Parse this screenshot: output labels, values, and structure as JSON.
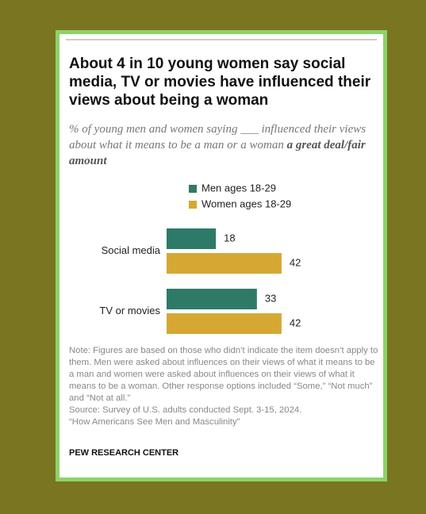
{
  "chart_data": {
    "type": "bar",
    "orientation": "horizontal",
    "title": "About 4 in 10 young women say social media, TV or movies have influenced their views about being a woman",
    "subtitle": "% of young men and women saying ___ influenced their views about what it means to be a man or a woman",
    "subtitle_emphasis": "a great deal/fair amount",
    "categories": [
      "Social media",
      "TV or movies"
    ],
    "series": [
      {
        "name": "Men ages 18-29",
        "color": "#2e7a68",
        "values": [
          18,
          33
        ]
      },
      {
        "name": "Women ages 18-29",
        "color": "#d6a833",
        "values": [
          42,
          42
        ]
      }
    ],
    "note": "Note: Figures are based on those who didn’t indicate the item doesn’t apply to them. Men were asked about influences on their views of what it means to be a man and women were asked about influences on their views of what it means to be a woman. Other response options included “Some,” “Not much” and “Not at all.”",
    "source": "Source: Survey of U.S. adults conducted Sept. 3-15, 2024.",
    "report": "“How Americans See Men and Masculinity”",
    "credit": "PEW RESEARCH CENTER"
  }
}
